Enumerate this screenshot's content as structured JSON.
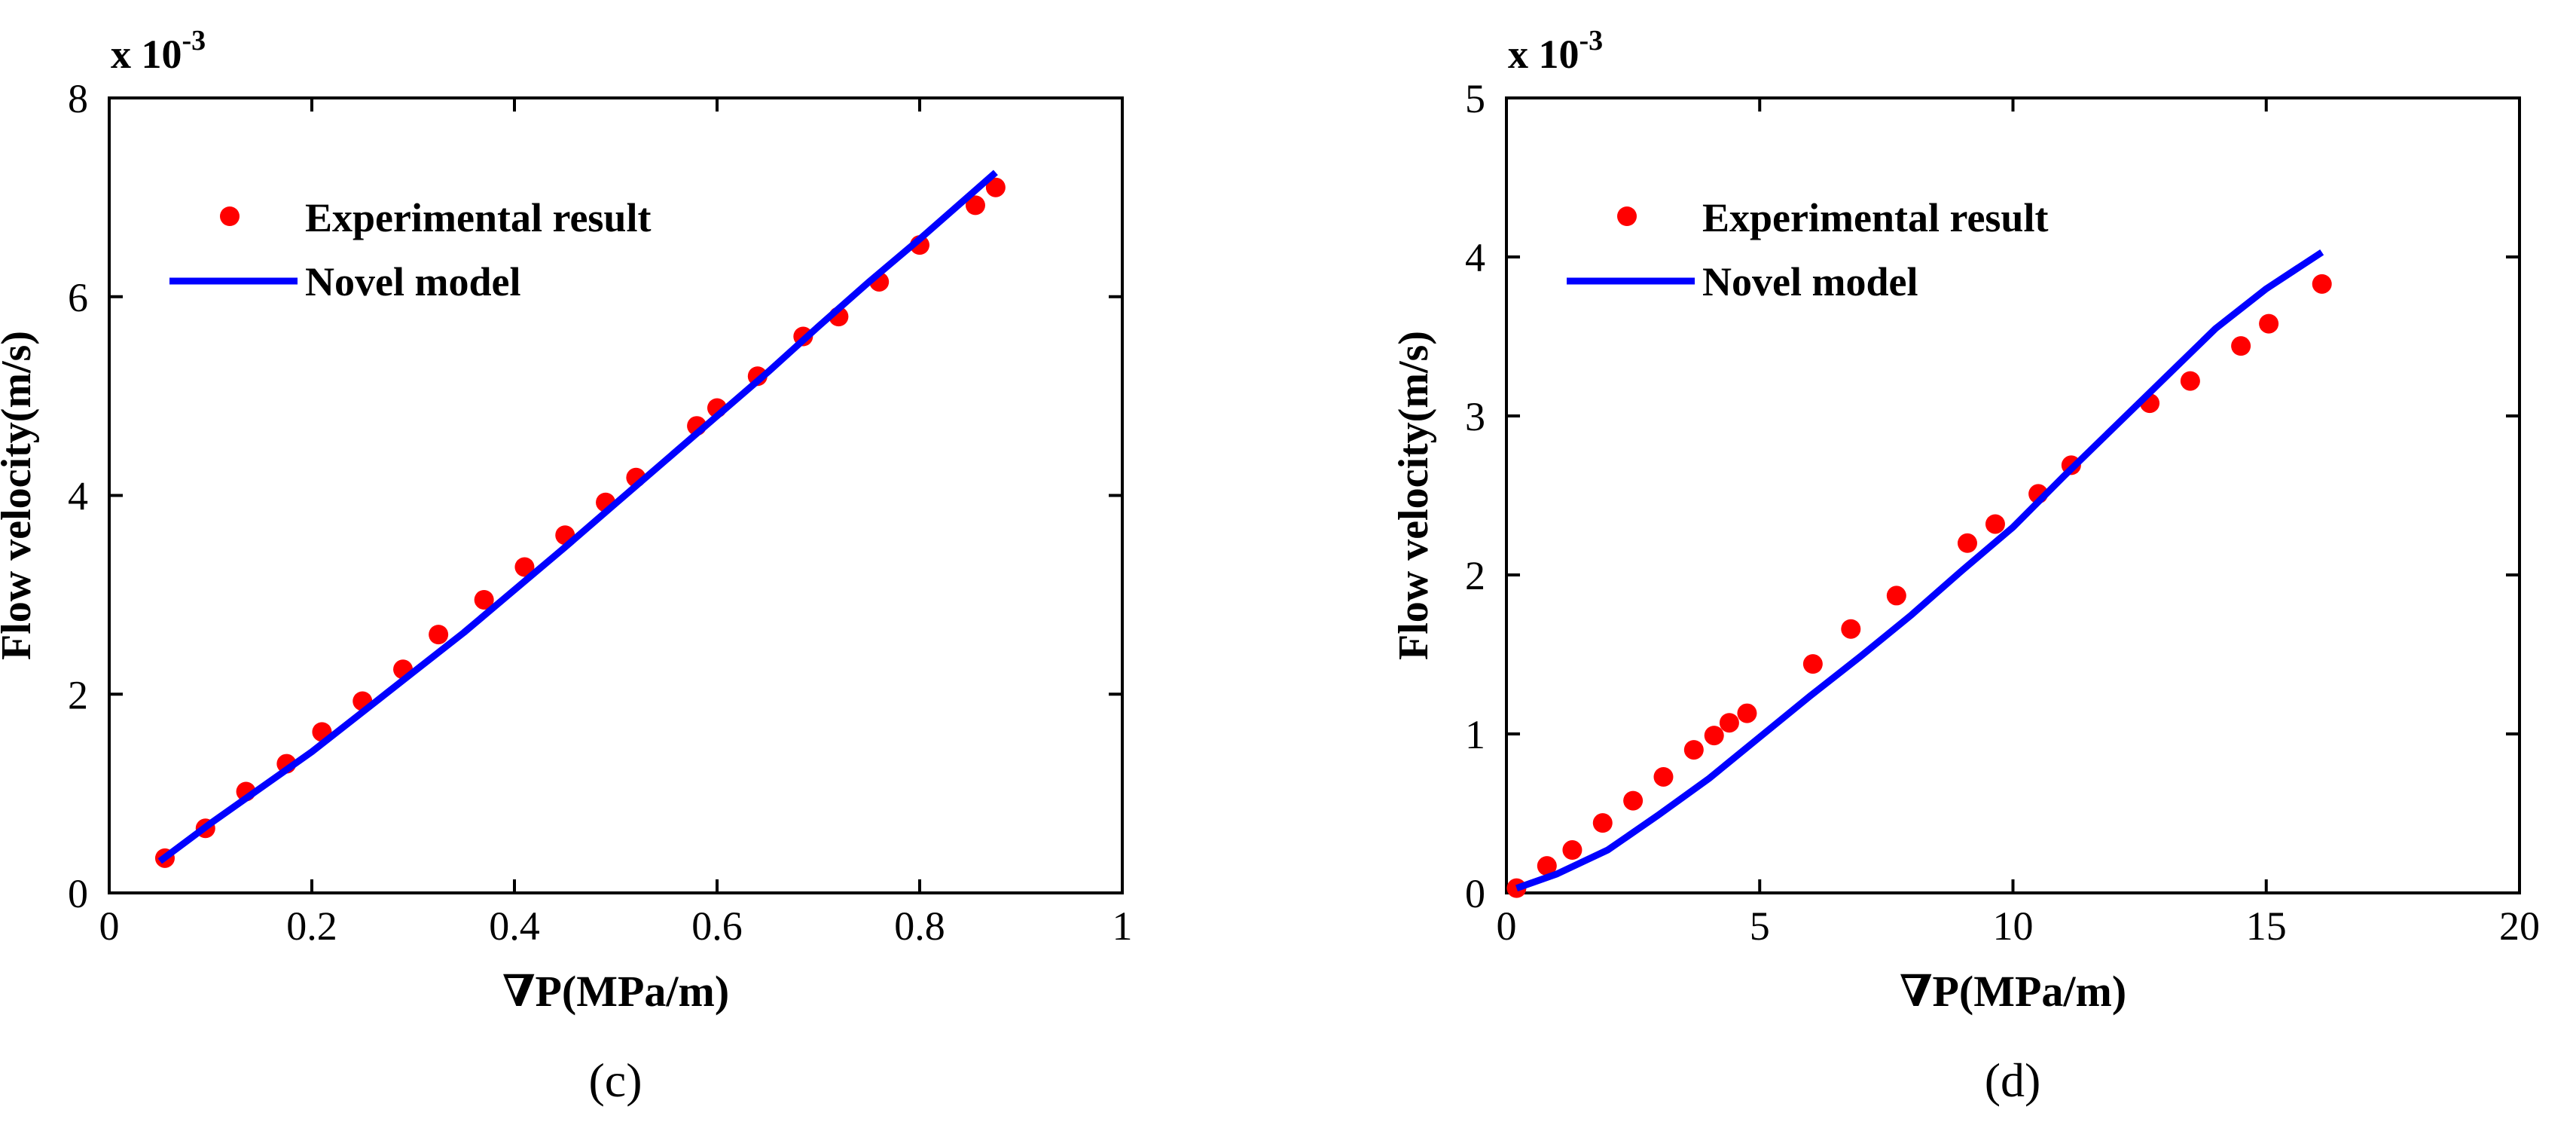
{
  "colors": {
    "marker": "#ff0000",
    "line": "#0000ff",
    "axis": "#000000",
    "background": "#ffffff"
  },
  "chart_data": [
    {
      "type": "scatter",
      "panel_label": "(c)",
      "xlabel": "∇P(MPa/m)",
      "ylabel": "Flow velocity(m/s)",
      "y_exponent": "x 10",
      "y_exponent_power": "-3",
      "xlim": [
        0,
        1
      ],
      "ylim": [
        0,
        8
      ],
      "x_ticks": [
        0,
        0.2,
        0.4,
        0.6,
        0.8,
        1
      ],
      "x_tick_labels": [
        "0",
        "0.2",
        "0.4",
        "0.6",
        "0.8",
        "1"
      ],
      "y_ticks": [
        0,
        2,
        4,
        6,
        8
      ],
      "y_tick_labels": [
        "0",
        "2",
        "4",
        "6",
        "8"
      ],
      "grid": false,
      "legend_position": "top-left",
      "legend": [
        "Experimental result",
        "Novel model"
      ],
      "series": [
        {
          "name": "Experimental result",
          "kind": "markers",
          "x": [
            0.055,
            0.095,
            0.135,
            0.175,
            0.21,
            0.25,
            0.29,
            0.325,
            0.37,
            0.41,
            0.45,
            0.49,
            0.52,
            0.58,
            0.6,
            0.64,
            0.685,
            0.72,
            0.76,
            0.8,
            0.855,
            0.875
          ],
          "y": [
            0.35,
            0.65,
            1.02,
            1.3,
            1.62,
            1.93,
            2.25,
            2.6,
            2.95,
            3.28,
            3.6,
            3.93,
            4.18,
            4.7,
            4.88,
            5.2,
            5.6,
            5.8,
            6.15,
            6.52,
            6.92,
            7.1
          ]
        },
        {
          "name": "Novel model",
          "kind": "line",
          "x": [
            0.05,
            0.1,
            0.15,
            0.2,
            0.25,
            0.3,
            0.35,
            0.4,
            0.45,
            0.5,
            0.55,
            0.6,
            0.65,
            0.7,
            0.75,
            0.8,
            0.875
          ],
          "y": [
            0.32,
            0.7,
            1.06,
            1.42,
            1.82,
            2.22,
            2.62,
            3.05,
            3.48,
            3.92,
            4.36,
            4.8,
            5.24,
            5.7,
            6.15,
            6.58,
            7.25
          ]
        }
      ]
    },
    {
      "type": "scatter",
      "panel_label": "(d)",
      "xlabel": "∇P(MPa/m)",
      "ylabel": "Flow velocity(m/s)",
      "y_exponent": "x 10",
      "y_exponent_power": "-3",
      "xlim": [
        0,
        20
      ],
      "ylim": [
        0,
        5
      ],
      "x_ticks": [
        0,
        5,
        10,
        15,
        20
      ],
      "x_tick_labels": [
        "0",
        "5",
        "10",
        "15",
        "20"
      ],
      "y_ticks": [
        0,
        1,
        2,
        3,
        4,
        5
      ],
      "y_tick_labels": [
        "0",
        "1",
        "2",
        "3",
        "4",
        "5"
      ],
      "grid": false,
      "legend_position": "top-left",
      "legend": [
        "Experimental result",
        "Novel model"
      ],
      "series": [
        {
          "name": "Experimental result",
          "kind": "markers",
          "x": [
            0.2,
            0.8,
            1.3,
            1.9,
            2.5,
            3.1,
            3.7,
            4.1,
            4.4,
            4.75,
            6.05,
            6.8,
            7.7,
            9.1,
            9.65,
            10.5,
            11.15,
            12.7,
            13.5,
            14.5,
            15.05,
            16.1
          ],
          "y": [
            0.03,
            0.17,
            0.27,
            0.44,
            0.58,
            0.73,
            0.9,
            0.99,
            1.07,
            1.13,
            1.44,
            1.66,
            1.87,
            2.2,
            2.32,
            2.51,
            2.69,
            3.08,
            3.22,
            3.44,
            3.58,
            3.83
          ]
        },
        {
          "name": "Novel model",
          "kind": "line",
          "x": [
            0.2,
            1,
            2,
            3,
            4,
            5,
            6,
            7,
            8,
            9,
            10,
            11,
            12,
            13,
            14,
            15,
            16.1
          ],
          "y": [
            0.03,
            0.12,
            0.27,
            0.49,
            0.72,
            0.98,
            1.24,
            1.49,
            1.75,
            2.03,
            2.3,
            2.62,
            2.93,
            3.24,
            3.55,
            3.8,
            4.03
          ]
        }
      ]
    }
  ]
}
